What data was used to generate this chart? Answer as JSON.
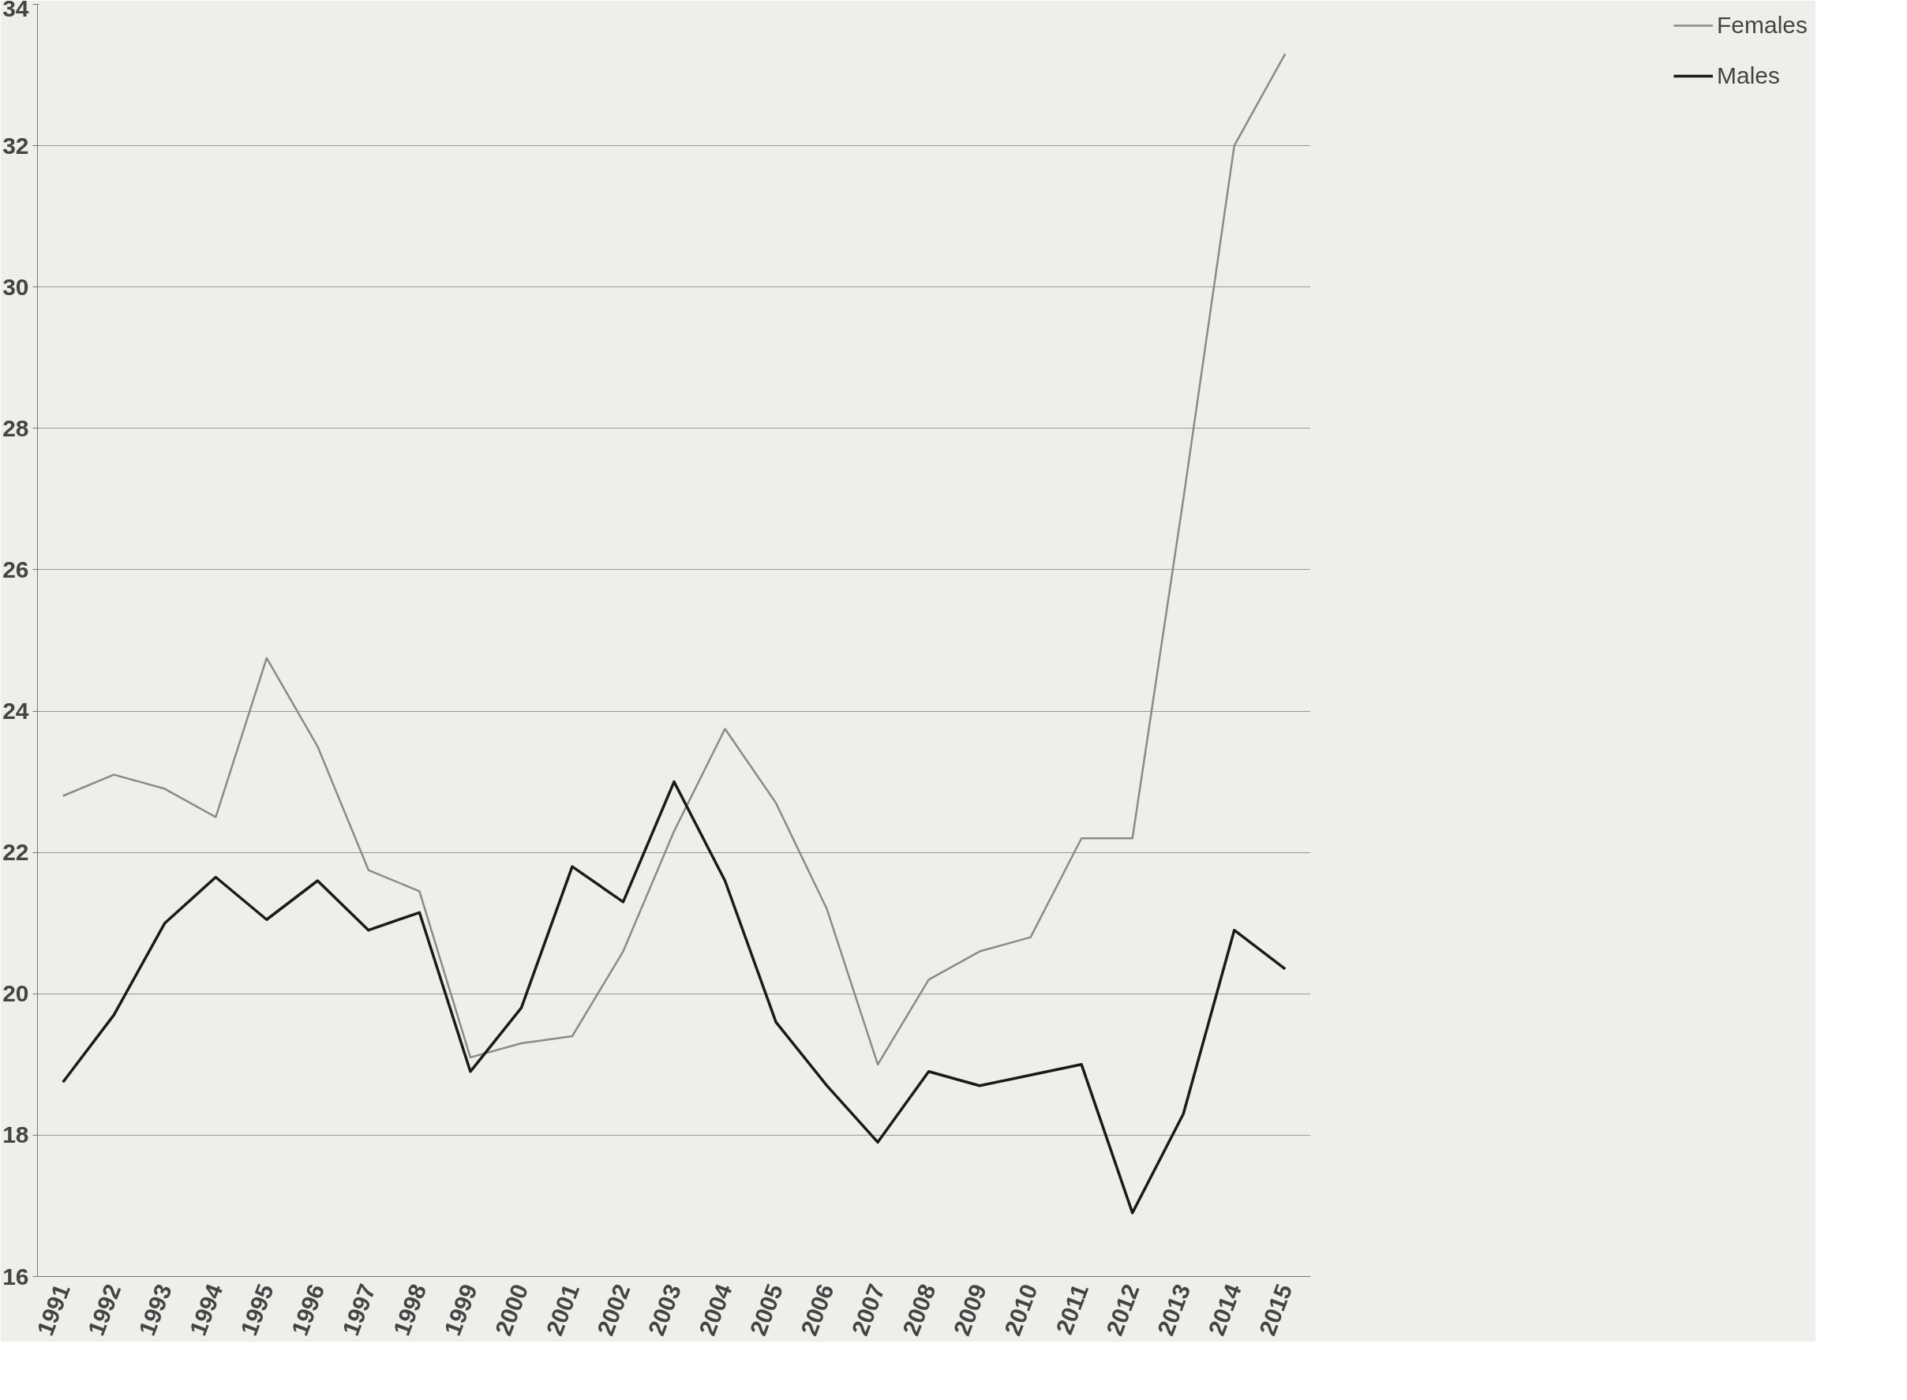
{
  "chart_data": {
    "type": "line",
    "categories": [
      "1991",
      "1992",
      "1993",
      "1994",
      "1995",
      "1996",
      "1997",
      "1998",
      "1999",
      "2000",
      "2001",
      "2002",
      "2003",
      "2004",
      "2005",
      "2006",
      "2007",
      "2008",
      "2009",
      "2010",
      "2011",
      "2012",
      "2013",
      "2014",
      "2015"
    ],
    "series": [
      {
        "name": "Females",
        "color": "#8a8a8a",
        "values": [
          22.8,
          23.1,
          22.9,
          22.5,
          24.75,
          23.5,
          21.75,
          21.45,
          19.1,
          19.3,
          19.4,
          20.6,
          22.3,
          23.75,
          22.7,
          21.2,
          19.0,
          20.2,
          20.6,
          20.8,
          22.2,
          22.2,
          27.0,
          32.0,
          33.3
        ]
      },
      {
        "name": "Males",
        "color": "#1a1a1a",
        "values": [
          18.75,
          19.7,
          21.0,
          21.65,
          21.05,
          21.6,
          20.9,
          21.15,
          18.9,
          19.8,
          21.8,
          21.3,
          23.0,
          21.6,
          19.6,
          18.7,
          17.9,
          18.9,
          18.7,
          18.85,
          19.0,
          16.9,
          18.3,
          20.9,
          20.35
        ]
      }
    ],
    "ylim": [
      16,
      34
    ],
    "yticks": [
      16,
      18,
      20,
      22,
      24,
      26,
      28,
      30,
      32,
      34
    ],
    "grid": "y",
    "legend": "right",
    "marker": "none",
    "line_style": "solid"
  }
}
